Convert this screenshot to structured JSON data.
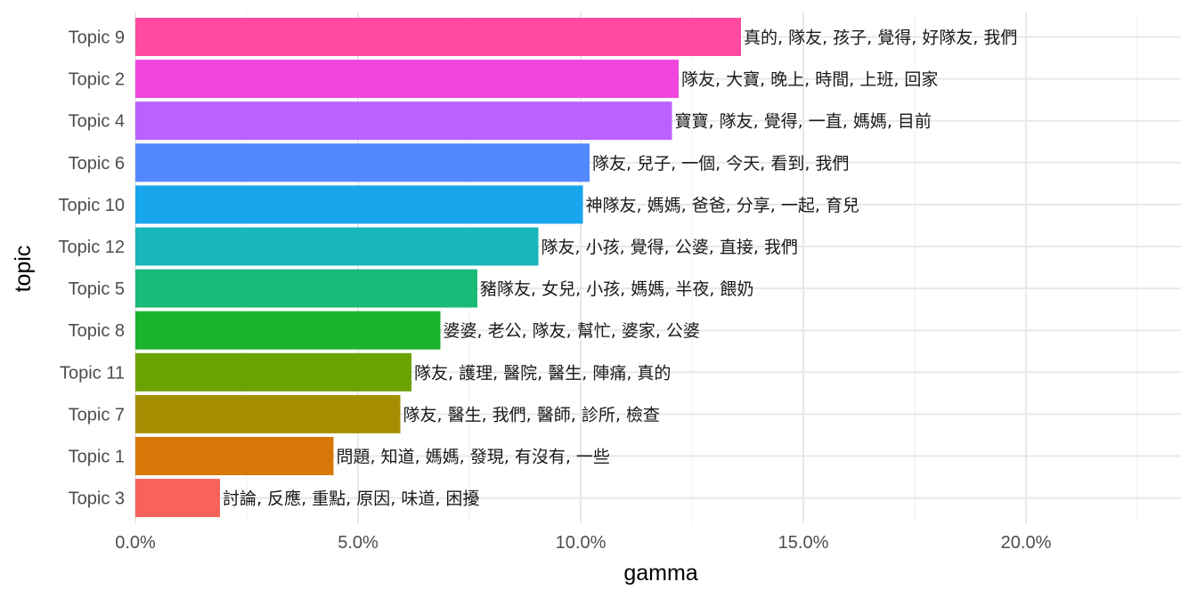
{
  "chart_data": {
    "type": "bar",
    "orientation": "horizontal",
    "xlabel": "gamma",
    "ylabel": "topic",
    "xlim": [
      0,
      0.235
    ],
    "x_ticks": [
      0,
      0.05,
      0.1,
      0.15,
      0.2
    ],
    "x_tick_labels": [
      "0.0%",
      "5.0%",
      "10.0%",
      "15.0%",
      "20.0%"
    ],
    "grid": true,
    "legend": "none",
    "bars": [
      {
        "category": "Topic 9",
        "value": 0.136,
        "color": "#FF4AA0",
        "label": "真的, 隊友, 孩子, 覺得, 好隊友, 我們"
      },
      {
        "category": "Topic 2",
        "value": 0.122,
        "color": "#F046DF",
        "label": "隊友, 大寶, 晚上, 時間, 上班, 回家"
      },
      {
        "category": "Topic 4",
        "value": 0.1205,
        "color": "#B962FF",
        "label": "寶寶, 隊友, 覺得, 一直, 媽媽, 目前"
      },
      {
        "category": "Topic 6",
        "value": 0.102,
        "color": "#5389FF",
        "label": "隊友, 兒子, 一個, 今天, 看到, 我們"
      },
      {
        "category": "Topic 10",
        "value": 0.1005,
        "color": "#17A6EC",
        "label": "神隊友, 媽媽, 爸爸, 分享, 一起, 育兒"
      },
      {
        "category": "Topic 12",
        "value": 0.0905,
        "color": "#19B6BB",
        "label": "隊友, 小孩, 覺得, 公婆, 直接, 我們"
      },
      {
        "category": "Topic 5",
        "value": 0.0768,
        "color": "#1ABA79",
        "label": "豬隊友, 女兒, 小孩, 媽媽, 半夜, 餵奶"
      },
      {
        "category": "Topic 8",
        "value": 0.0685,
        "color": "#1BB32D",
        "label": "婆婆, 老公, 隊友, 幫忙, 婆家, 公婆"
      },
      {
        "category": "Topic 11",
        "value": 0.062,
        "color": "#6BA204",
        "label": "隊友, 護理, 醫院, 醫生, 陣痛, 真的"
      },
      {
        "category": "Topic 7",
        "value": 0.0595,
        "color": "#A58F00",
        "label": "隊友, 醫生, 我們, 醫師, 診所, 檢查"
      },
      {
        "category": "Topic 1",
        "value": 0.0445,
        "color": "#D67707",
        "label": "問題, 知道, 媽媽, 發現, 有沒有, 一些"
      },
      {
        "category": "Topic 3",
        "value": 0.019,
        "color": "#F8625A",
        "label": "討論, 反應, 重點, 原因, 味道, 困擾"
      }
    ]
  }
}
